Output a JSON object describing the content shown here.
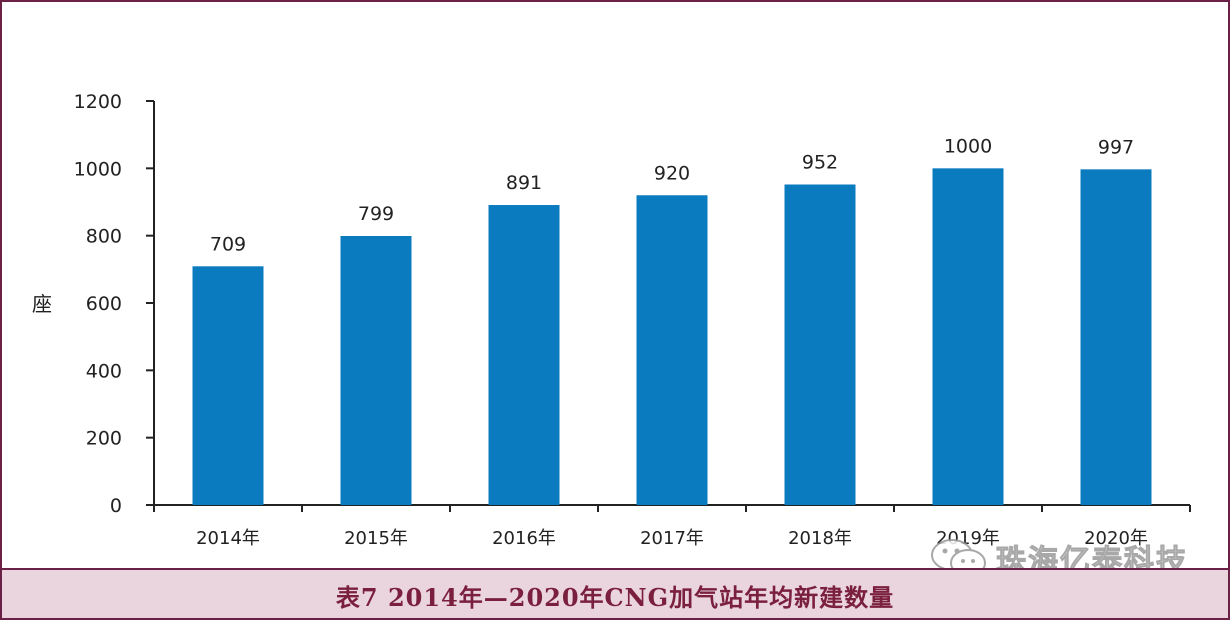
{
  "chart_data": {
    "type": "bar",
    "categories": [
      "2014年",
      "2015年",
      "2016年",
      "2017年",
      "2018年",
      "2019年",
      "2020年"
    ],
    "values": [
      709,
      799,
      891,
      920,
      952,
      1000,
      997
    ],
    "data_labels": [
      "709",
      "799",
      "891",
      "920",
      "952",
      "1000",
      "997"
    ],
    "ylabel": "座",
    "ylim": [
      0,
      1200
    ],
    "yticks": [
      0,
      200,
      400,
      600,
      800,
      1000,
      1200
    ],
    "ytick_labels": [
      "0",
      "200",
      "400",
      "600",
      "800",
      "1000",
      "1200"
    ],
    "grid": false,
    "legend": "none",
    "bar_color": "#0a7bbf"
  },
  "caption": "表7  2014年—2020年CNG加气站年均新建数量",
  "watermark": {
    "text": "珠海亿泰科技",
    "icon": "wechat-icon"
  },
  "colors": {
    "border": "#6b2145",
    "caption_bg": "#ead4de",
    "caption_text": "#7a1f3d"
  }
}
